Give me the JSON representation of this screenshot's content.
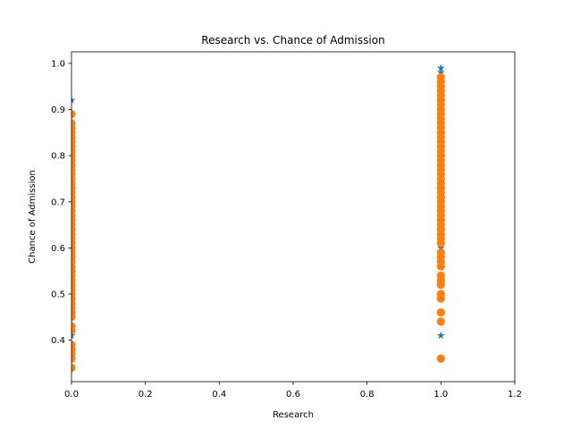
{
  "chart_data": {
    "type": "scatter",
    "title": "Research vs. Chance of Admission",
    "xlabel": "Research",
    "ylabel": "Chance of Admission",
    "xlim": [
      0.0,
      1.2
    ],
    "ylim": [
      0.31,
      1.025
    ],
    "xticks": [
      0.0,
      0.2,
      0.4,
      0.6,
      0.8,
      1.0,
      1.2
    ],
    "xtick_labels": [
      "0.0",
      "0.2",
      "0.4",
      "0.6",
      "0.8",
      "1.0",
      "1.2"
    ],
    "yticks": [
      0.4,
      0.5,
      0.6,
      0.7,
      0.8,
      0.9,
      1.0
    ],
    "ytick_labels": [
      "0.4",
      "0.5",
      "0.6",
      "0.7",
      "0.8",
      "0.9",
      "1.0"
    ],
    "grid": false,
    "series": [
      {
        "marker": "star",
        "color": "#1f77b4",
        "points": [
          [
            0,
            0.92
          ],
          [
            0,
            0.89
          ],
          [
            0,
            0.41
          ],
          [
            1,
            0.99
          ],
          [
            1,
            0.98
          ],
          [
            1,
            0.97
          ],
          [
            1,
            0.96
          ],
          [
            1,
            0.94
          ],
          [
            1,
            0.62
          ],
          [
            1,
            0.6
          ],
          [
            1,
            0.41
          ]
        ]
      },
      {
        "marker": "circle",
        "color": "#ff7f0e",
        "points": [
          [
            0,
            0.89
          ],
          [
            0,
            0.87
          ],
          [
            0,
            0.86
          ],
          [
            0,
            0.85
          ],
          [
            0,
            0.84
          ],
          [
            0,
            0.83
          ],
          [
            0,
            0.82
          ],
          [
            0,
            0.81
          ],
          [
            0,
            0.8
          ],
          [
            0,
            0.79
          ],
          [
            0,
            0.78
          ],
          [
            0,
            0.77
          ],
          [
            0,
            0.76
          ],
          [
            0,
            0.75
          ],
          [
            0,
            0.74
          ],
          [
            0,
            0.73
          ],
          [
            0,
            0.72
          ],
          [
            0,
            0.71
          ],
          [
            0,
            0.7
          ],
          [
            0,
            0.69
          ],
          [
            0,
            0.68
          ],
          [
            0,
            0.67
          ],
          [
            0,
            0.66
          ],
          [
            0,
            0.65
          ],
          [
            0,
            0.64
          ],
          [
            0,
            0.63
          ],
          [
            0,
            0.62
          ],
          [
            0,
            0.61
          ],
          [
            0,
            0.6
          ],
          [
            0,
            0.59
          ],
          [
            0,
            0.58
          ],
          [
            0,
            0.57
          ],
          [
            0,
            0.56
          ],
          [
            0,
            0.55
          ],
          [
            0,
            0.54
          ],
          [
            0,
            0.53
          ],
          [
            0,
            0.52
          ],
          [
            0,
            0.51
          ],
          [
            0,
            0.5
          ],
          [
            0,
            0.49
          ],
          [
            0,
            0.48
          ],
          [
            0,
            0.47
          ],
          [
            0,
            0.46
          ],
          [
            0,
            0.45
          ],
          [
            0,
            0.43
          ],
          [
            0,
            0.42
          ],
          [
            0,
            0.39
          ],
          [
            0,
            0.38
          ],
          [
            0,
            0.37
          ],
          [
            0,
            0.36
          ],
          [
            0,
            0.34
          ],
          [
            1,
            0.97
          ],
          [
            1,
            0.96
          ],
          [
            1,
            0.95
          ],
          [
            1,
            0.94
          ],
          [
            1,
            0.93
          ],
          [
            1,
            0.92
          ],
          [
            1,
            0.91
          ],
          [
            1,
            0.9
          ],
          [
            1,
            0.89
          ],
          [
            1,
            0.88
          ],
          [
            1,
            0.87
          ],
          [
            1,
            0.86
          ],
          [
            1,
            0.85
          ],
          [
            1,
            0.84
          ],
          [
            1,
            0.83
          ],
          [
            1,
            0.82
          ],
          [
            1,
            0.81
          ],
          [
            1,
            0.8
          ],
          [
            1,
            0.79
          ],
          [
            1,
            0.78
          ],
          [
            1,
            0.77
          ],
          [
            1,
            0.76
          ],
          [
            1,
            0.75
          ],
          [
            1,
            0.74
          ],
          [
            1,
            0.73
          ],
          [
            1,
            0.72
          ],
          [
            1,
            0.71
          ],
          [
            1,
            0.7
          ],
          [
            1,
            0.69
          ],
          [
            1,
            0.68
          ],
          [
            1,
            0.67
          ],
          [
            1,
            0.66
          ],
          [
            1,
            0.65
          ],
          [
            1,
            0.64
          ],
          [
            1,
            0.63
          ],
          [
            1,
            0.62
          ],
          [
            1,
            0.61
          ],
          [
            1,
            0.59
          ],
          [
            1,
            0.58
          ],
          [
            1,
            0.57
          ],
          [
            1,
            0.56
          ],
          [
            1,
            0.54
          ],
          [
            1,
            0.53
          ],
          [
            1,
            0.52
          ],
          [
            1,
            0.5
          ],
          [
            1,
            0.49
          ],
          [
            1,
            0.46
          ],
          [
            1,
            0.44
          ],
          [
            1,
            0.36
          ]
        ]
      }
    ]
  }
}
